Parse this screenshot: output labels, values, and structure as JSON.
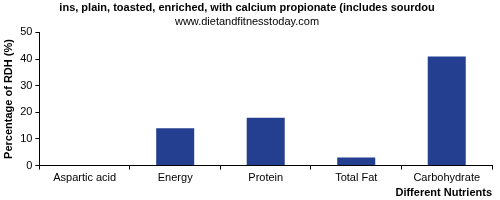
{
  "chart_data": {
    "type": "bar",
    "title": "ins, plain, toasted, enriched, with calcium propionate (includes sourdou",
    "subtitle": "www.dietandfitnesstoday.com",
    "x_label": "Different Nutrients",
    "y_label": "Percentage of RDH (%)",
    "categories": [
      "Aspartic acid",
      "Energy",
      "Protein",
      "Total Fat",
      "Carbohydrate"
    ],
    "values": [
      0,
      14,
      18,
      3,
      41
    ],
    "color": "#243f8f",
    "ylim": [
      0,
      50
    ],
    "yticks": [
      0,
      10,
      20,
      30,
      40,
      50
    ],
    "grid": false
  }
}
